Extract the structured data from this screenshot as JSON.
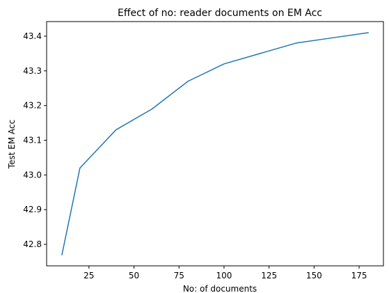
{
  "chart_data": {
    "type": "line",
    "title": "Effect of no: reader documents on EM Acc",
    "xlabel": "No: of documents",
    "ylabel": "Test EM Acc",
    "x": [
      10,
      20,
      40,
      60,
      80,
      100,
      120,
      140,
      160,
      180
    ],
    "series": [
      {
        "values": [
          42.77,
          43.02,
          43.13,
          43.19,
          43.27,
          43.32,
          43.35,
          43.38,
          43.395,
          43.41
        ],
        "color": "#1f77b4"
      }
    ],
    "xlim": [
      1.5,
      188.5
    ],
    "ylim": [
      42.738,
      43.442
    ],
    "xticks": [
      25,
      50,
      75,
      100,
      125,
      150,
      175
    ],
    "yticks": [
      42.8,
      42.9,
      43.0,
      43.1,
      43.2,
      43.3,
      43.4
    ],
    "xtick_labels": [
      "25",
      "50",
      "75",
      "100",
      "125",
      "150",
      "175"
    ],
    "ytick_labels": [
      "42.8",
      "42.9",
      "43.0",
      "43.1",
      "43.2",
      "43.3",
      "43.4"
    ],
    "grid": false,
    "legend": "none"
  }
}
